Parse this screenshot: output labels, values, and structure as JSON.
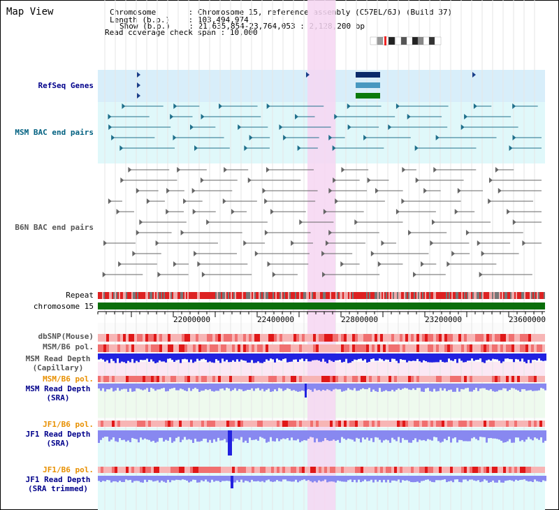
{
  "title": "Map View",
  "info": [
    {
      "label": "Chromosome      ",
      "value": "Chromosome 15, reference assembly (C57BL/6J) (Build 37)"
    },
    {
      "label": "Length (b.p.)   ",
      "value": "103,494,974"
    },
    {
      "label": "Show (b.p.)   ",
      "value": "21,635,854-23,764,053 : 2,128,200 bp"
    },
    {
      "label": "Read coverage check span",
      "value": "10,000"
    }
  ],
  "tracks": {
    "refseq": "RefSeq Genes",
    "msm_bac": "MSM BAC end pairs",
    "b6n_bac": "B6N BAC end pairs",
    "repeat": "Repeat",
    "chromosome": "chromosome 15",
    "dbsnp": "dbSNP(Mouse)",
    "msm_pol": "MSM/B6 pol.",
    "msm_cap_1": "MSM Read Depth",
    "msm_cap_2": "(Capillary)",
    "msm_pol2": "MSM/B6 pol.",
    "msm_sra_1": "MSM Read Depth",
    "msm_sra_2": "(SRA)",
    "jf1_pol": "JF1/B6 pol.",
    "jf1_sra_1": "JF1 Read Depth",
    "jf1_sra_2": "(SRA)",
    "jf1_pol2": "JF1/B6 pol.",
    "jf1_trim_1": "JF1 Read Depth",
    "jf1_trim_2": "(SRA trimmed)"
  },
  "ticks": [
    "22000000",
    "22400000",
    "22800000",
    "23200000",
    "23600000"
  ],
  "colors": {
    "highlight": "#f6d6f2",
    "refseq_bg": "#d8eefa",
    "bac_bg": "#e0f8fa",
    "msm_bac": "#1f6f8b",
    "b6n_bac": "#666666",
    "chromosome": "#0a6e0a",
    "depth": "#2222e0",
    "depth_light": "#8888f0"
  }
}
